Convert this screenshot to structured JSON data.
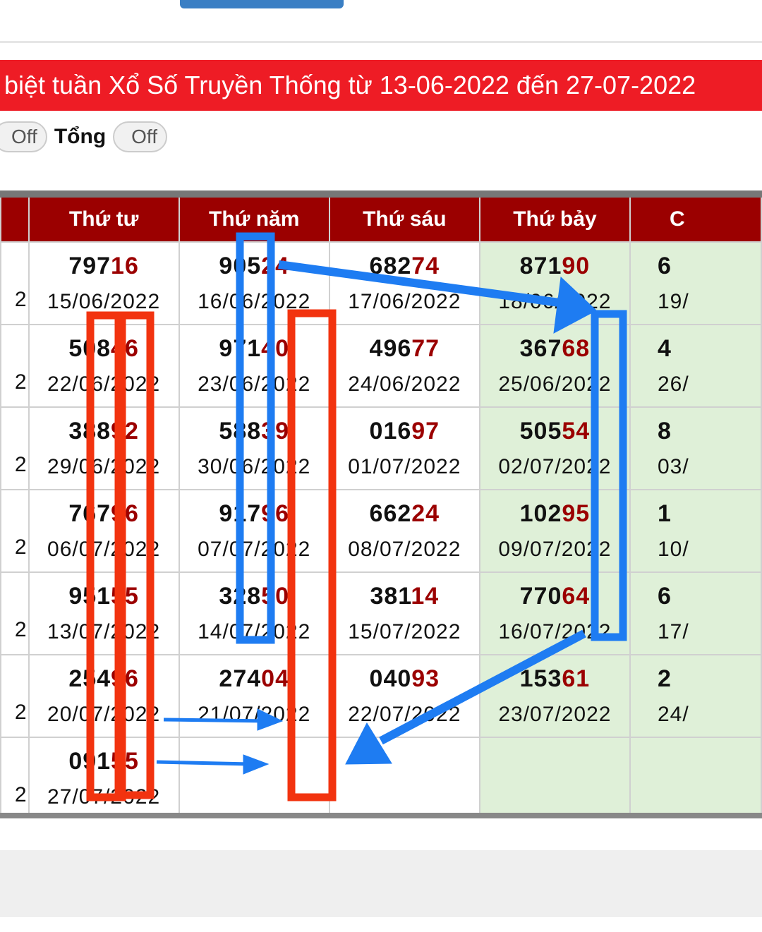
{
  "banner": {
    "title": "biệt tuần Xổ Số Truyền Thống từ 13-06-2022 đến 27-07-2022"
  },
  "toggles": {
    "first": "Off",
    "label": "Tổng",
    "second": "Off"
  },
  "table": {
    "headers": [
      "",
      "Thứ tư",
      "Thứ năm",
      "Thứ sáu",
      "Thứ bảy",
      "C"
    ],
    "rows": [
      {
        "left": "2",
        "cells": [
          {
            "head": "797",
            "tail": "16",
            "date": "15/06/2022"
          },
          {
            "head": "905",
            "tail": "24",
            "date": "16/06/2022"
          },
          {
            "head": "682",
            "tail": "74",
            "date": "17/06/2022"
          },
          {
            "head": "871",
            "tail": "90",
            "date": "18/06/2022"
          }
        ],
        "right": {
          "num": "6",
          "date": "19/"
        }
      },
      {
        "left": "2",
        "cells": [
          {
            "head": "508",
            "tail": "46",
            "date": "22/06/2022"
          },
          {
            "head": "971",
            "tail": "40",
            "date": "23/06/2022"
          },
          {
            "head": "496",
            "tail": "77",
            "date": "24/06/2022"
          },
          {
            "head": "367",
            "tail": "68",
            "date": "25/06/2022"
          }
        ],
        "right": {
          "num": "4",
          "date": "26/"
        }
      },
      {
        "left": "2",
        "cells": [
          {
            "head": "388",
            "tail": "92",
            "date": "29/06/2022"
          },
          {
            "head": "588",
            "tail": "39",
            "date": "30/06/2022"
          },
          {
            "head": "016",
            "tail": "97",
            "date": "01/07/2022"
          },
          {
            "head": "505",
            "tail": "54",
            "date": "02/07/2022"
          }
        ],
        "right": {
          "num": "8",
          "date": "03/"
        }
      },
      {
        "left": "2",
        "cells": [
          {
            "head": "767",
            "tail": "96",
            "date": "06/07/2022"
          },
          {
            "head": "917",
            "tail": "96",
            "date": "07/07/2022"
          },
          {
            "head": "662",
            "tail": "24",
            "date": "08/07/2022"
          },
          {
            "head": "102",
            "tail": "95",
            "date": "09/07/2022"
          }
        ],
        "right": {
          "num": "1",
          "date": "10/"
        }
      },
      {
        "left": "2",
        "cells": [
          {
            "head": "951",
            "tail": "55",
            "date": "13/07/2022"
          },
          {
            "head": "328",
            "tail": "50",
            "date": "14/07/2022"
          },
          {
            "head": "381",
            "tail": "14",
            "date": "15/07/2022"
          },
          {
            "head": "770",
            "tail": "64",
            "date": "16/07/2022"
          }
        ],
        "right": {
          "num": "6",
          "date": "17/"
        }
      },
      {
        "left": "2",
        "cells": [
          {
            "head": "254",
            "tail": "96",
            "date": "20/07/2022"
          },
          {
            "head": "274",
            "tail": "04",
            "date": "21/07/2022"
          },
          {
            "head": "040",
            "tail": "93",
            "date": "22/07/2022"
          },
          {
            "head": "153",
            "tail": "61",
            "date": "23/07/2022"
          }
        ],
        "right": {
          "num": "2",
          "date": "24/"
        }
      },
      {
        "left": "2",
        "cells": [
          {
            "head": "091",
            "tail": "55",
            "date": "27/07/2022"
          },
          null,
          null,
          null
        ],
        "right": null
      }
    ]
  },
  "colors": {
    "banner": "#ee1c25",
    "header": "#9b0000",
    "saturday_bg": "#dff0d8",
    "annotation_red": "#f2330f",
    "annotation_blue": "#1e7cf2"
  }
}
